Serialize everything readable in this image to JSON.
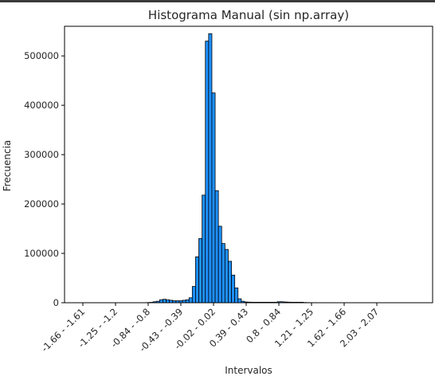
{
  "chart_data": {
    "type": "bar",
    "title": "Histograma Manual (sin np.array)",
    "xlabel": "Intervalos",
    "ylabel": "Frecuencia",
    "ylim": [
      0,
      560000
    ],
    "yticks": [
      0,
      100000,
      200000,
      300000,
      400000,
      500000
    ],
    "bar_color": "#1e90ff",
    "edge_color": "#000000",
    "x_tick_labels": [
      "-1.66 - -1.61",
      "-1.25 - -1.2",
      "-0.84 - -0.8",
      "-0.43 - -0.39",
      "-0.02 - 0.02",
      "0.39 - 0.43",
      "0.8 - 0.84",
      "1.21 - 1.25",
      "1.62 - 1.66",
      "2.03 - 2.07"
    ],
    "bins": {
      "start": -1.66,
      "width": 0.041,
      "count": 92,
      "label_every": 10
    },
    "values": [
      0,
      0,
      0,
      0,
      0,
      0,
      0,
      0,
      0,
      0,
      0,
      0,
      0,
      0,
      0,
      0,
      0,
      0,
      0,
      200,
      400,
      800,
      2000,
      3000,
      6000,
      7000,
      6000,
      5000,
      4000,
      4000,
      4000,
      5000,
      6000,
      10000,
      33000,
      93000,
      130000,
      218000,
      530000,
      545000,
      425000,
      227000,
      155000,
      120000,
      108000,
      84000,
      56000,
      30000,
      8000,
      3000,
      1500,
      1200,
      1000,
      1000,
      1000,
      1000,
      1000,
      1000,
      1000,
      1000,
      2000,
      2000,
      1500,
      1200,
      1000,
      1000,
      1000,
      1000,
      500,
      300,
      200,
      200,
      100,
      100,
      100,
      100,
      0,
      0,
      0,
      0,
      0,
      0,
      0,
      0,
      0,
      0,
      0,
      0,
      0,
      0,
      0,
      0
    ]
  }
}
